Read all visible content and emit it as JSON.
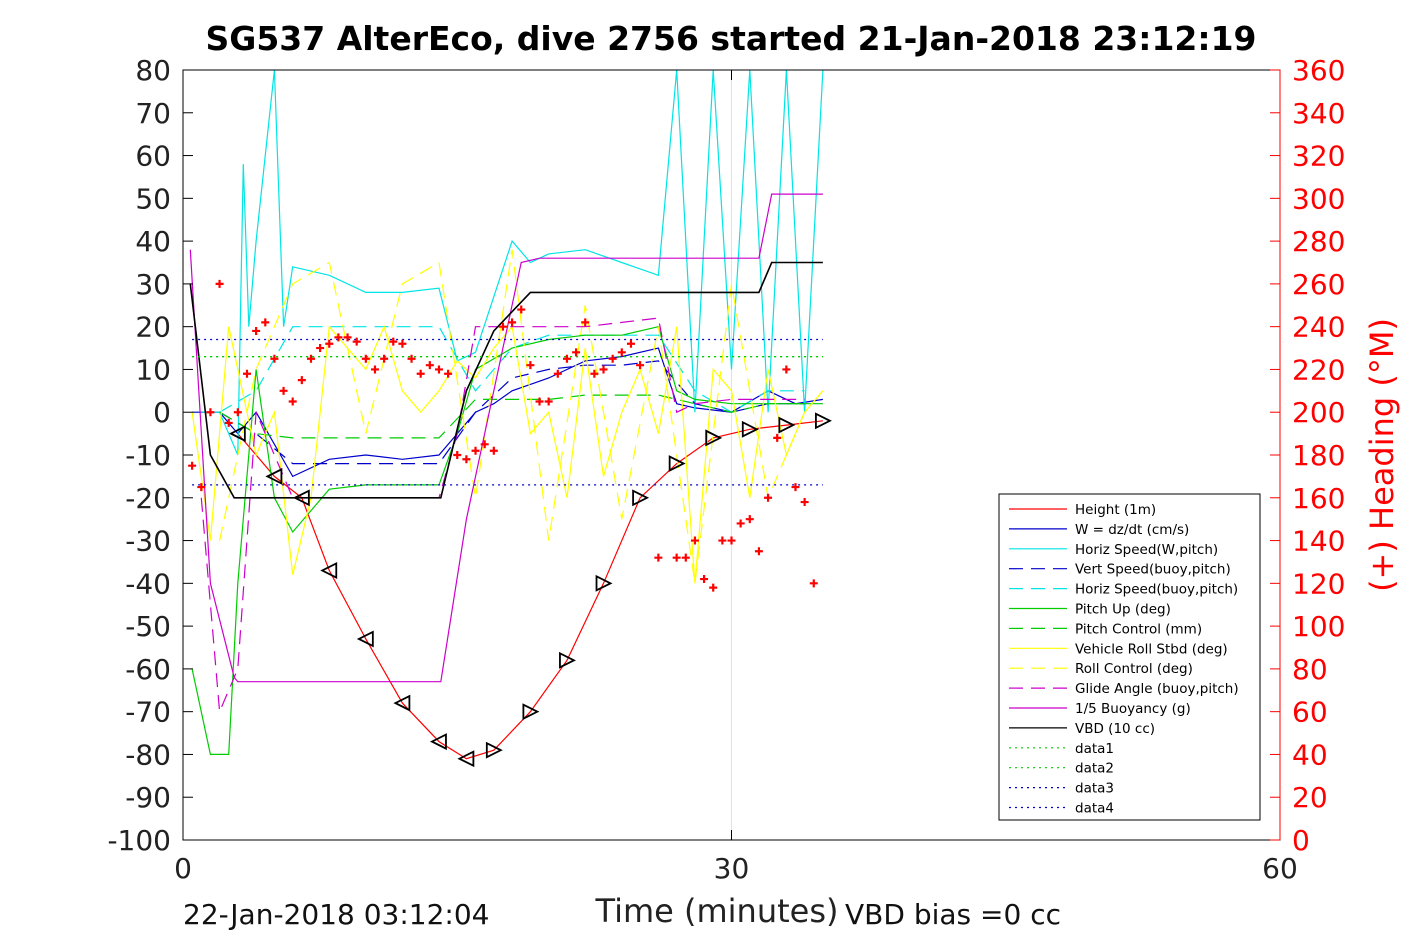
{
  "chart_data": {
    "type": "line",
    "title": "SG537 AlterEco, dive 2756 started 21-Jan-2018 23:12:19",
    "xlabel": "Time (minutes)",
    "ylabel_left": "",
    "ylabel_right": "(+) Heading (°M)",
    "xlim": [
      0,
      60
    ],
    "ylim_left": [
      -100,
      80
    ],
    "ylim_right": [
      0,
      360
    ],
    "x_ticks": [
      0,
      30,
      60
    ],
    "y_ticks_left": [
      80,
      70,
      60,
      50,
      40,
      30,
      20,
      10,
      0,
      -10,
      -20,
      -30,
      -40,
      -50,
      -60,
      -70,
      -80,
      -90,
      -100
    ],
    "y_ticks_right": [
      360,
      340,
      320,
      300,
      280,
      260,
      240,
      220,
      200,
      180,
      160,
      140,
      120,
      100,
      80,
      60,
      40,
      20,
      0
    ],
    "grid": "x at 30 only",
    "legend_position": "bottom-right",
    "colors": {
      "height": "#ff0000",
      "w": "#0000cc",
      "horiz_speed": "#00e5e5",
      "vert_speed_buoy": "#0000cc",
      "horiz_speed_buoy": "#00e5e5",
      "pitch_up": "#00cc00",
      "pitch_control": "#00cc00",
      "roll": "#ffff00",
      "roll_control": "#ffff00",
      "glide_angle": "#cc00cc",
      "buoyancy": "#cc00cc",
      "vbd": "#000000",
      "heading": "#ff0000",
      "right_axis": "#ff0000"
    },
    "series": [
      {
        "name": "Height (1m)",
        "style": "solid",
        "color": "#ff0000",
        "x": [
          3,
          5,
          6.5,
          8,
          10,
          12,
          14,
          15.5,
          17,
          19,
          21,
          23,
          25,
          27,
          29,
          31,
          33,
          35
        ],
        "y": [
          -5,
          -15,
          -20,
          -37,
          -53,
          -68,
          -77,
          -81,
          -79,
          -70,
          -58,
          -40,
          -20,
          -12,
          -6,
          -4,
          -3,
          -2
        ]
      },
      {
        "name": "W = dz/dt (cm/s)",
        "style": "solid",
        "color": "#0000cc",
        "x": [
          0.5,
          2,
          3,
          4,
          6,
          8,
          10,
          12,
          14,
          15,
          16,
          17,
          18,
          20,
          22,
          24,
          26,
          27,
          28,
          30,
          32,
          33.5,
          35
        ],
        "y": [
          0,
          0,
          -5,
          0,
          -15,
          -11,
          -10,
          -11,
          -10,
          -5,
          0,
          2,
          5,
          8,
          12,
          13,
          15,
          2,
          1,
          0,
          5,
          2,
          3
        ]
      },
      {
        "name": "Horiz Speed(W,pitch)",
        "style": "solid",
        "color": "#00e5e5",
        "x": [
          1,
          2,
          3,
          3.3,
          3.6,
          4,
          5,
          5.5,
          6,
          8,
          10,
          12,
          14,
          15,
          16,
          18,
          19,
          20,
          22,
          24,
          26,
          27,
          28,
          29,
          30,
          31,
          32,
          33,
          34,
          35
        ],
        "y": [
          0,
          0,
          -10,
          58,
          20,
          40,
          80,
          20,
          34,
          32,
          28,
          28,
          29,
          12,
          14,
          40,
          35,
          37,
          38,
          35,
          32,
          80,
          0,
          80,
          10,
          80,
          0,
          80,
          0,
          80
        ]
      },
      {
        "name": "Vert Speed(buoy,pitch)",
        "style": "dashed",
        "color": "#0000cc",
        "x": [
          2,
          4,
          6,
          8,
          10,
          12,
          14,
          16,
          18,
          20,
          22,
          24,
          26,
          28,
          30,
          32,
          34
        ],
        "y": [
          0,
          -5,
          -12,
          -12,
          -12,
          -12,
          -12,
          0,
          8,
          10,
          11,
          11,
          12,
          2,
          0,
          2,
          2
        ]
      },
      {
        "name": "Horiz Speed(buoy,pitch)",
        "style": "dashed",
        "color": "#00e5e5",
        "x": [
          2,
          4,
          6,
          8,
          10,
          12,
          14,
          16,
          18,
          20,
          22,
          24,
          26,
          28,
          30,
          32,
          34
        ],
        "y": [
          0,
          5,
          20,
          20,
          20,
          20,
          20,
          5,
          15,
          18,
          18,
          18,
          18,
          5,
          0,
          5,
          5
        ]
      },
      {
        "name": "Pitch Up (deg)",
        "style": "solid",
        "color": "#00cc00",
        "x": [
          0.5,
          1.5,
          2.5,
          3,
          4,
          5,
          6,
          8,
          10,
          12,
          14,
          15,
          16,
          18,
          20,
          22,
          24,
          26,
          27,
          28,
          30,
          32,
          34,
          35
        ],
        "y": [
          -60,
          -80,
          -80,
          -40,
          10,
          -20,
          -28,
          -18,
          -17,
          -17,
          -17,
          -5,
          10,
          15,
          17,
          18,
          18,
          20,
          5,
          3,
          2,
          2,
          2,
          2
        ]
      },
      {
        "name": "Pitch Control (mm)",
        "style": "dashed",
        "color": "#00cc00",
        "x": [
          2,
          4,
          6,
          8,
          10,
          12,
          14,
          16,
          18,
          20,
          22,
          24,
          26,
          28,
          30,
          32,
          34
        ],
        "y": [
          0,
          -5,
          -6,
          -6,
          -6,
          -6,
          -6,
          3,
          3,
          3,
          4,
          4,
          4,
          2,
          0,
          2,
          2
        ]
      },
      {
        "name": "Vehicle Roll Stbd (deg)",
        "style": "solid",
        "color": "#ffff00",
        "x": [
          0.5,
          1.5,
          2.5,
          4,
          5,
          6,
          7,
          8,
          9,
          10,
          11,
          12,
          13,
          14,
          15,
          16,
          17,
          18,
          19,
          20,
          21,
          22,
          23,
          24,
          25,
          26,
          27,
          28,
          29,
          30,
          31,
          32,
          33,
          34,
          35
        ],
        "y": [
          0,
          -30,
          20,
          -10,
          0,
          -38,
          -20,
          20,
          15,
          10,
          20,
          5,
          0,
          5,
          12,
          8,
          15,
          20,
          -5,
          0,
          -20,
          15,
          -15,
          0,
          10,
          -5,
          20,
          -40,
          10,
          5,
          -20,
          10,
          -10,
          0,
          5
        ]
      },
      {
        "name": "Roll Control (deg)",
        "style": "dashed",
        "color": "#ffff00",
        "x": [
          2,
          4,
          6,
          8,
          10,
          12,
          14,
          16,
          18,
          20,
          22,
          24,
          26,
          28,
          30,
          32,
          34
        ],
        "y": [
          -30,
          10,
          30,
          35,
          -5,
          30,
          35,
          -20,
          38,
          -30,
          25,
          -25,
          20,
          -40,
          30,
          -20,
          0
        ]
      },
      {
        "name": "Glide Angle (buoy,pitch)",
        "style": "dashed",
        "color": "#cc00cc",
        "x": [
          1,
          2,
          3,
          4,
          6,
          8,
          10,
          12,
          14,
          15,
          16,
          18,
          20,
          22,
          24,
          26,
          27,
          28,
          30,
          32,
          34
        ],
        "y": [
          -20,
          -70,
          -60,
          0,
          -20,
          -20,
          -20,
          -20,
          -20,
          -5,
          20,
          20,
          20,
          20,
          21,
          22,
          0,
          2,
          3,
          3,
          3
        ]
      },
      {
        "name": "1/5 Buoyancy (g)",
        "style": "solid",
        "color": "#cc00cc",
        "x": [
          0.4,
          1.5,
          2.8,
          3,
          5,
          8,
          12,
          14.1,
          15.5,
          18.5,
          19.5,
          31.5,
          32.2,
          35
        ],
        "y": [
          38,
          -40,
          -62,
          -63,
          -63,
          -63,
          -63,
          -63,
          -25,
          35,
          36,
          36,
          51,
          51
        ]
      },
      {
        "name": "VBD (10 cc)",
        "style": "solid",
        "color": "#000000",
        "x": [
          0.4,
          1.5,
          2.8,
          5,
          8,
          12,
          14.1,
          15.5,
          17,
          19,
          20,
          31.5,
          32.2,
          35
        ],
        "y": [
          30,
          -10,
          -20,
          -20,
          -20,
          -20,
          -20,
          5,
          19,
          28,
          28,
          28,
          35,
          35
        ]
      },
      {
        "name": "data1",
        "style": "dotted",
        "color": "#00cc00",
        "x": [
          0.5,
          35
        ],
        "y": [
          13,
          13
        ]
      },
      {
        "name": "data2",
        "style": "dotted",
        "color": "#00cc00",
        "x": [
          0.5,
          35
        ],
        "y": [
          13,
          13
        ]
      },
      {
        "name": "data3",
        "style": "dotted",
        "color": "#0000cc",
        "x": [
          0.5,
          35
        ],
        "y": [
          17,
          17
        ]
      },
      {
        "name": "data4",
        "style": "dotted",
        "color": "#0000cc",
        "x": [
          0.5,
          35
        ],
        "y": [
          -17,
          -17
        ]
      }
    ],
    "heading_points": {
      "axis": "right",
      "x": [
        0.5,
        1,
        1.5,
        2,
        2.5,
        3,
        3.5,
        4,
        4.5,
        5,
        5.5,
        6,
        6.5,
        7,
        7.5,
        8,
        8.5,
        9,
        9.5,
        10,
        10.5,
        11,
        11.5,
        12,
        12.5,
        13,
        13.5,
        14,
        14.5,
        15,
        15.5,
        16,
        16.5,
        17,
        17.5,
        18,
        18.5,
        19,
        19.5,
        20,
        20.5,
        21,
        21.5,
        22,
        22.5,
        23,
        23.5,
        24,
        24.5,
        25,
        26,
        27,
        27.5,
        28,
        28.5,
        29,
        29.5,
        30,
        30.5,
        31,
        31.5,
        32,
        32.5,
        33,
        33.5,
        34,
        34.5
      ],
      "y": [
        175,
        165,
        200,
        260,
        195,
        200,
        218,
        238,
        242,
        225,
        210,
        205,
        215,
        225,
        230,
        232,
        235,
        235,
        233,
        225,
        220,
        225,
        233,
        232,
        225,
        218,
        222,
        220,
        218,
        180,
        178,
        182,
        185,
        182,
        240,
        242,
        248,
        222,
        205,
        205,
        218,
        225,
        228,
        242,
        218,
        220,
        225,
        228,
        232,
        222,
        132,
        132,
        132,
        140,
        122,
        118,
        140,
        140,
        148,
        150,
        135,
        160,
        188,
        220,
        165,
        158,
        120
      ]
    }
  },
  "footer": {
    "timestamp": "22-Jan-2018 03:12:04",
    "vbd_bias": "VBD bias =0 cc"
  }
}
